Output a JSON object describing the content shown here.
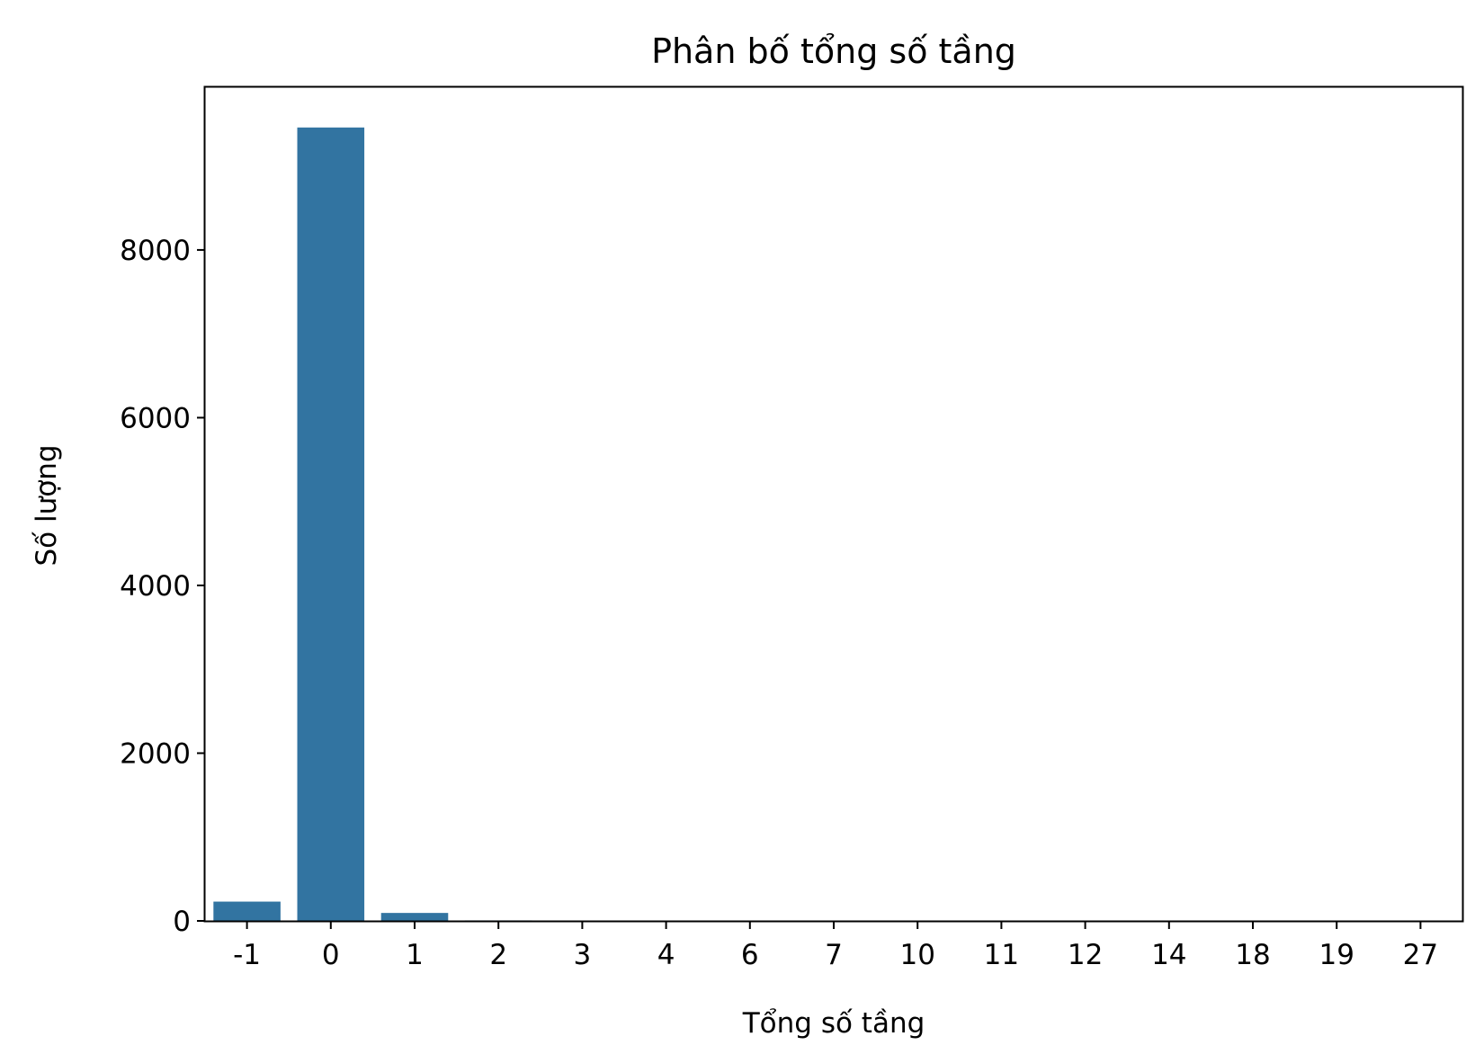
{
  "chart_data": {
    "type": "bar",
    "title": "Phân bố tổng số tầng",
    "xlabel": "Tổng số tầng",
    "ylabel": "Số lượng",
    "categories": [
      "-1",
      "0",
      "1",
      "2",
      "3",
      "4",
      "6",
      "7",
      "10",
      "11",
      "12",
      "14",
      "18",
      "19",
      "27"
    ],
    "values": [
      230,
      9460,
      95,
      6,
      3,
      2,
      2,
      1,
      2,
      1,
      1,
      1,
      1,
      1,
      1
    ],
    "yticks": [
      "0",
      "2000",
      "4000",
      "6000",
      "8000"
    ],
    "ylim": [
      0,
      9940
    ],
    "grid": false,
    "legend": "none",
    "bar_color": "#3274a1"
  }
}
